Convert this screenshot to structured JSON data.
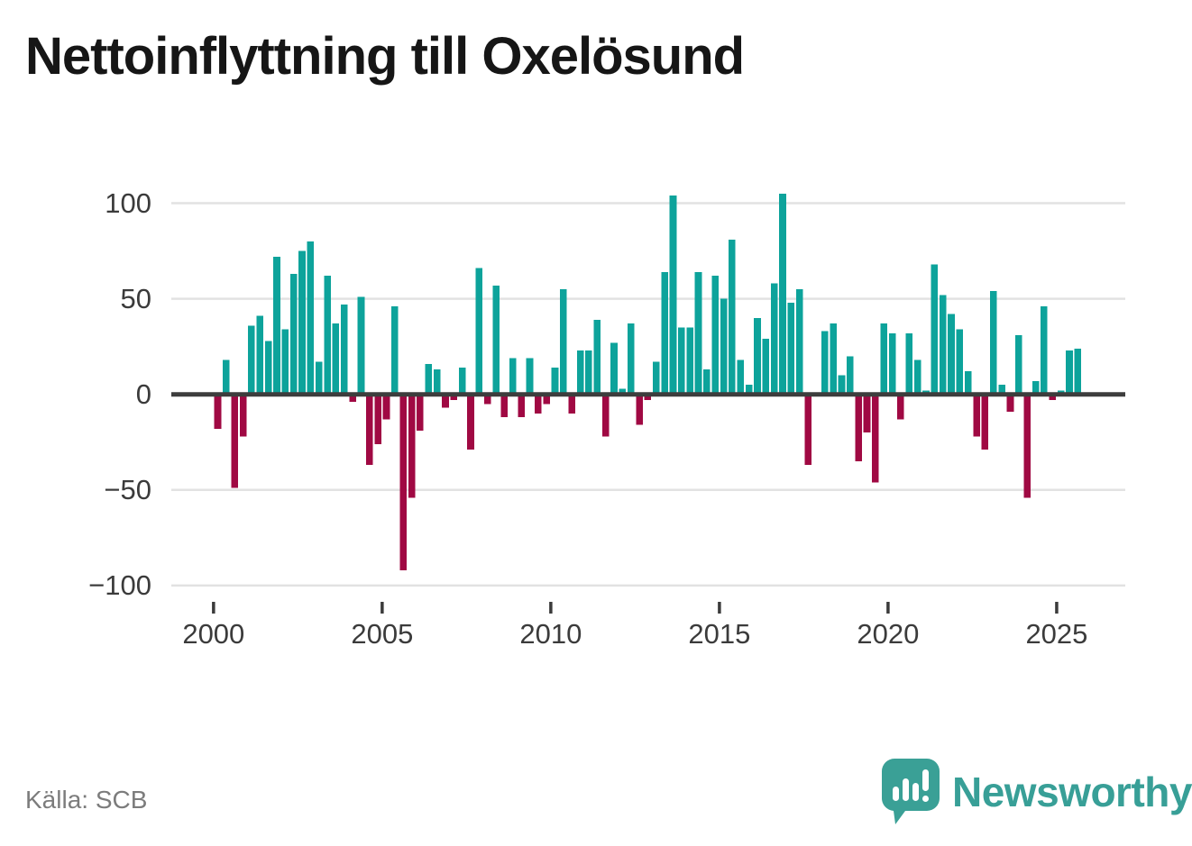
{
  "title": "Nettoinflyttning till Oxelösund",
  "source": {
    "label": "Källa: SCB"
  },
  "brand": {
    "name": "Newsworthy",
    "logo_icon": "speech-bubble-bar-chart-icon"
  },
  "colors": {
    "positive": "#0da39b",
    "negative": "#a00943",
    "zero_line": "#3d3d3d",
    "grid_line": "#e2e2e2",
    "title_text": "#161616",
    "axis_text": "#3b3b3b",
    "source_text": "#7c7c7c",
    "brand_teal": "#389f97"
  },
  "chart_data": {
    "type": "bar",
    "title": "Nettoinflyttning till Oxelösund",
    "series_name": "Nettoinflyttning per kvartal",
    "frequency": "quarterly",
    "grid": "horizontal",
    "legend": "none",
    "xlabel": "",
    "ylabel": "",
    "ylim": [
      -110,
      115
    ],
    "yticks": [
      100,
      50,
      0,
      -50,
      -100
    ],
    "ytick_labels": [
      "100",
      "50",
      "0",
      "−50",
      "−100"
    ],
    "xticks": [
      2000,
      2005,
      2010,
      2015,
      2020,
      2025
    ],
    "xtick_labels": [
      "2000",
      "2005",
      "2010",
      "2015",
      "2020",
      "2025"
    ],
    "x": [
      "2000Q1",
      "2000Q2",
      "2000Q3",
      "2000Q4",
      "2001Q1",
      "2001Q2",
      "2001Q3",
      "2001Q4",
      "2002Q1",
      "2002Q2",
      "2002Q3",
      "2002Q4",
      "2003Q1",
      "2003Q2",
      "2003Q3",
      "2003Q4",
      "2004Q1",
      "2004Q2",
      "2004Q3",
      "2004Q4",
      "2005Q1",
      "2005Q2",
      "2005Q3",
      "2005Q4",
      "2006Q1",
      "2006Q2",
      "2006Q3",
      "2006Q4",
      "2007Q1",
      "2007Q2",
      "2007Q3",
      "2007Q4",
      "2008Q1",
      "2008Q2",
      "2008Q3",
      "2008Q4",
      "2009Q1",
      "2009Q2",
      "2009Q3",
      "2009Q4",
      "2010Q1",
      "2010Q2",
      "2010Q3",
      "2010Q4",
      "2011Q1",
      "2011Q2",
      "2011Q3",
      "2011Q4",
      "2012Q1",
      "2012Q2",
      "2012Q3",
      "2012Q4",
      "2013Q1",
      "2013Q2",
      "2013Q3",
      "2013Q4",
      "2014Q1",
      "2014Q2",
      "2014Q3",
      "2014Q4",
      "2015Q1",
      "2015Q2",
      "2015Q3",
      "2015Q4",
      "2016Q1",
      "2016Q2",
      "2016Q3",
      "2016Q4",
      "2017Q1",
      "2017Q2",
      "2017Q3",
      "2017Q4",
      "2018Q1",
      "2018Q2",
      "2018Q3",
      "2018Q4",
      "2019Q1",
      "2019Q2",
      "2019Q3",
      "2019Q4",
      "2020Q1",
      "2020Q2",
      "2020Q3",
      "2020Q4",
      "2021Q1",
      "2021Q2",
      "2021Q3",
      "2021Q4",
      "2022Q1",
      "2022Q2",
      "2022Q3",
      "2022Q4",
      "2023Q1",
      "2023Q2",
      "2023Q3",
      "2023Q4",
      "2024Q1",
      "2024Q2",
      "2024Q3",
      "2024Q4",
      "2025Q1",
      "2025Q2",
      "2025Q3"
    ],
    "values": [
      -18,
      18,
      -49,
      -22,
      36,
      41,
      28,
      72,
      34,
      63,
      75,
      80,
      17,
      62,
      37,
      47,
      -4,
      51,
      -37,
      -26,
      -13,
      46,
      -92,
      -54,
      -19,
      16,
      13,
      -7,
      -3,
      14,
      -29,
      66,
      -5,
      57,
      -12,
      19,
      -12,
      19,
      -10,
      -5,
      14,
      55,
      -10,
      23,
      23,
      39,
      -22,
      27,
      3,
      37,
      -16,
      -3,
      17,
      64,
      104,
      35,
      35,
      64,
      13,
      62,
      50,
      81,
      18,
      5,
      40,
      29,
      58,
      105,
      48,
      55,
      -37,
      0,
      33,
      37,
      10,
      20,
      -35,
      -20,
      -46,
      37,
      32,
      -13,
      32,
      18,
      2,
      68,
      52,
      42,
      34,
      12,
      -22,
      -29,
      54,
      5,
      -9,
      31,
      -54,
      7,
      46,
      -3,
      2,
      23,
      24
    ],
    "positive_color": "#0da39b",
    "negative_color": "#a00943"
  }
}
